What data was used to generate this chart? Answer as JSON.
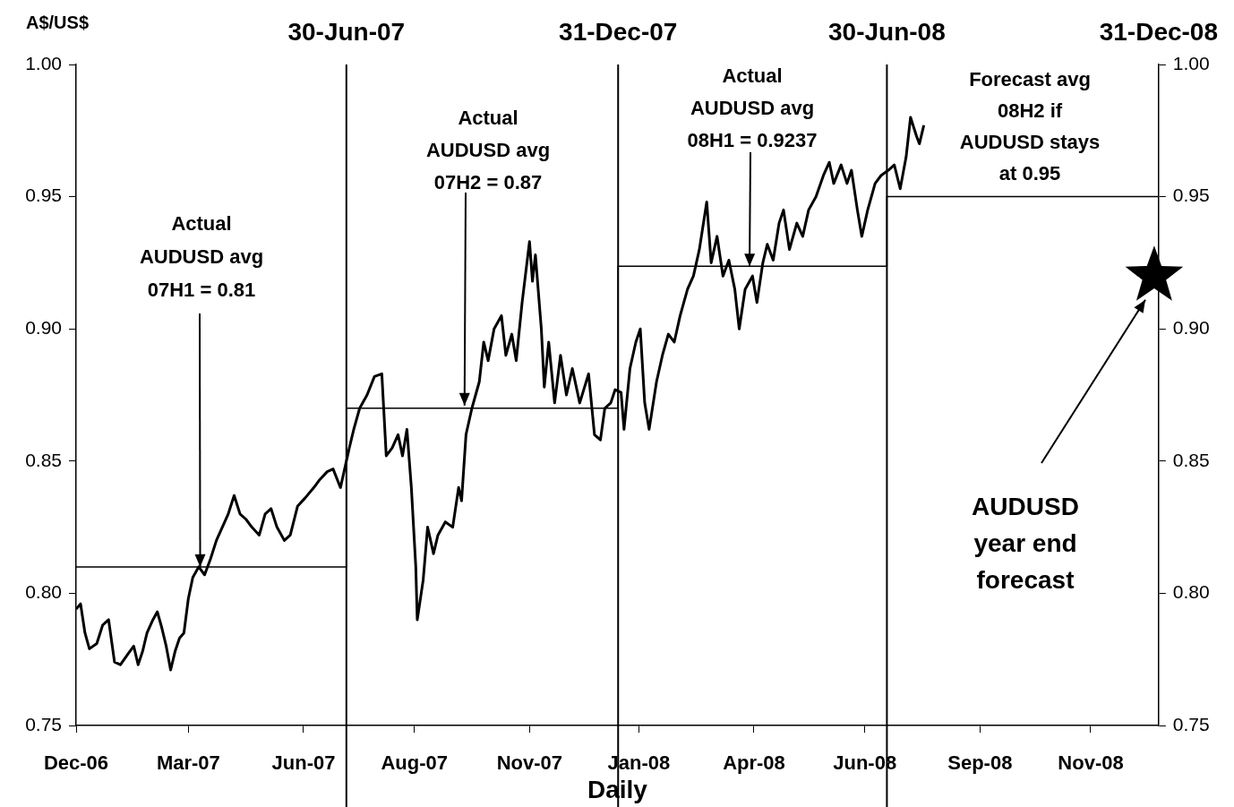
{
  "chart_data": {
    "type": "line",
    "ylabel": "A$/US$",
    "xlabel": "Daily",
    "xlim": [
      "2006-12-29",
      "2008-12-31"
    ],
    "xticks": [
      {
        "value": "2006-12-29",
        "label": "Dec-06"
      },
      {
        "value": "2007-03-15",
        "label": "Mar-07"
      },
      {
        "value": "2007-06-01",
        "label": "Jun-07"
      },
      {
        "value": "2007-08-15",
        "label": "Aug-07"
      },
      {
        "value": "2007-11-01",
        "label": "Nov-07"
      },
      {
        "value": "2008-01-14",
        "label": "Jan-08"
      },
      {
        "value": "2008-04-01",
        "label": "Apr-08"
      },
      {
        "value": "2008-06-15",
        "label": "Jun-08"
      },
      {
        "value": "2008-09-01",
        "label": "Sep-08"
      },
      {
        "value": "2008-11-15",
        "label": "Nov-08"
      }
    ],
    "x2lim": [
      "2006-12-29",
      "2008-12-31"
    ],
    "x2ticks": [
      {
        "value": "2007-06-30",
        "label": "30-Jun-07"
      },
      {
        "value": "2007-12-31",
        "label": "31-Dec-07"
      },
      {
        "value": "2008-06-30",
        "label": "30-Jun-08"
      },
      {
        "value": "2008-12-31",
        "label": "31-Dec-08"
      }
    ],
    "ylim": [
      0.75,
      1.0
    ],
    "yticks": [
      0.75,
      {
        "value": 0.8,
        "label": "0.80"
      },
      0.85,
      {
        "value": 0.9,
        "label": "0.90"
      },
      0.95,
      {
        "value": 1.0,
        "label": "1.00"
      }
    ],
    "y2lim": [
      0.75,
      1.0
    ],
    "y2ticks": [
      0.75,
      {
        "value": 0.8,
        "label": "0.80"
      },
      0.85,
      {
        "value": 0.9,
        "label": "0.90"
      },
      0.95,
      {
        "value": 1.0,
        "label": "1.00"
      }
    ],
    "grid": false,
    "legend": false,
    "marker": "none",
    "line_style": "solid",
    "ref_lines": [
      {
        "axis": "x",
        "value": "2007-06-30",
        "color": "#000000"
      },
      {
        "axis": "x",
        "value": "2007-12-31",
        "color": "#000000"
      },
      {
        "axis": "x",
        "value": "2008-06-30",
        "color": "#000000"
      }
    ],
    "series": [
      {
        "color": "#000000",
        "x": [
          "2006-12-29",
          "2007-01-01",
          "2007-01-04",
          "2007-01-07",
          "2007-01-12",
          "2007-01-16",
          "2007-01-20",
          "2007-01-24",
          "2007-01-28",
          "2007-02-02",
          "2007-02-06",
          "2007-02-09",
          "2007-02-12",
          "2007-02-15",
          "2007-02-19",
          "2007-02-22",
          "2007-02-25",
          "2007-02-28",
          "2007-03-03",
          "2007-03-06",
          "2007-03-09",
          "2007-03-12",
          "2007-03-15",
          "2007-03-18",
          "2007-03-22",
          "2007-03-26",
          "2007-03-30",
          "2007-04-03",
          "2007-04-07",
          "2007-04-11",
          "2007-04-15",
          "2007-04-19",
          "2007-04-23",
          "2007-04-27",
          "2007-05-02",
          "2007-05-06",
          "2007-05-10",
          "2007-05-14",
          "2007-05-19",
          "2007-05-23",
          "2007-05-28",
          "2007-06-02",
          "2007-06-08",
          "2007-06-12",
          "2007-06-17",
          "2007-06-21",
          "2007-06-26",
          "2007-07-02",
          "2007-07-05",
          "2007-07-09",
          "2007-07-14",
          "2007-07-19",
          "2007-07-24",
          "2007-07-27",
          "2007-07-31",
          "2007-08-04",
          "2007-08-07",
          "2007-08-10",
          "2007-08-13",
          "2007-08-16",
          "2007-08-17",
          "2007-08-21",
          "2007-08-24",
          "2007-08-28",
          "2007-08-31",
          "2007-09-05",
          "2007-09-10",
          "2007-09-14",
          "2007-09-16",
          "2007-09-19",
          "2007-09-23",
          "2007-09-28",
          "2007-10-01",
          "2007-10-04",
          "2007-10-08",
          "2007-10-13",
          "2007-10-16",
          "2007-10-20",
          "2007-10-23",
          "2007-10-27",
          "2007-11-01",
          "2007-11-03",
          "2007-11-05",
          "2007-11-09",
          "2007-11-11",
          "2007-11-14",
          "2007-11-18",
          "2007-11-22",
          "2007-11-26",
          "2007-11-30",
          "2007-12-05",
          "2007-12-11",
          "2007-12-15",
          "2007-12-19",
          "2007-12-22",
          "2007-12-26",
          "2007-12-29",
          "2008-01-02",
          "2008-01-04",
          "2008-01-08",
          "2008-01-12",
          "2008-01-15",
          "2008-01-18",
          "2008-01-21",
          "2008-01-26",
          "2008-01-30",
          "2008-02-03",
          "2008-02-07",
          "2008-02-11",
          "2008-02-16",
          "2008-02-20",
          "2008-02-24",
          "2008-02-29",
          "2008-03-03",
          "2008-03-07",
          "2008-03-11",
          "2008-03-15",
          "2008-03-19",
          "2008-03-22",
          "2008-03-26",
          "2008-03-31",
          "2008-04-03",
          "2008-04-07",
          "2008-04-10",
          "2008-04-14",
          "2008-04-18",
          "2008-04-21",
          "2008-04-25",
          "2008-04-30",
          "2008-05-04",
          "2008-05-08",
          "2008-05-13",
          "2008-05-18",
          "2008-05-22",
          "2008-05-25",
          "2008-05-30",
          "2008-06-03",
          "2008-06-06",
          "2008-06-10",
          "2008-06-13",
          "2008-06-17",
          "2008-06-22",
          "2008-06-26",
          "2008-07-01",
          "2008-07-05",
          "2008-07-09",
          "2008-07-13",
          "2008-07-16",
          "2008-07-20",
          "2008-07-22",
          "2008-07-25"
        ],
        "values": [
          0.794,
          0.796,
          0.785,
          0.779,
          0.781,
          0.788,
          0.79,
          0.774,
          0.773,
          0.777,
          0.78,
          0.773,
          0.778,
          0.785,
          0.79,
          0.793,
          0.787,
          0.78,
          0.771,
          0.778,
          0.783,
          0.785,
          0.798,
          0.806,
          0.81,
          0.807,
          0.813,
          0.82,
          0.825,
          0.83,
          0.837,
          0.83,
          0.828,
          0.825,
          0.822,
          0.83,
          0.832,
          0.825,
          0.82,
          0.822,
          0.833,
          0.836,
          0.84,
          0.843,
          0.846,
          0.847,
          0.84,
          0.855,
          0.862,
          0.87,
          0.875,
          0.882,
          0.883,
          0.852,
          0.855,
          0.86,
          0.852,
          0.862,
          0.84,
          0.81,
          0.79,
          0.805,
          0.825,
          0.815,
          0.822,
          0.827,
          0.825,
          0.84,
          0.835,
          0.86,
          0.87,
          0.88,
          0.895,
          0.888,
          0.9,
          0.905,
          0.89,
          0.898,
          0.888,
          0.91,
          0.933,
          0.918,
          0.928,
          0.9,
          0.878,
          0.895,
          0.872,
          0.89,
          0.875,
          0.885,
          0.872,
          0.883,
          0.86,
          0.858,
          0.87,
          0.872,
          0.877,
          0.876,
          0.862,
          0.885,
          0.895,
          0.9,
          0.872,
          0.862,
          0.88,
          0.89,
          0.898,
          0.895,
          0.905,
          0.915,
          0.92,
          0.93,
          0.948,
          0.925,
          0.935,
          0.92,
          0.926,
          0.915,
          0.9,
          0.915,
          0.92,
          0.91,
          0.925,
          0.932,
          0.926,
          0.94,
          0.945,
          0.93,
          0.94,
          0.935,
          0.945,
          0.95,
          0.958,
          0.963,
          0.955,
          0.962,
          0.955,
          0.96,
          0.945,
          0.935,
          0.945,
          0.955,
          0.958,
          0.96,
          0.962,
          0.953,
          0.965,
          0.98,
          0.973,
          0.97,
          0.977
        ]
      },
      {
        "type": "step",
        "color": "#000000",
        "x": [
          "2006-12-29",
          "2007-06-30",
          "2007-12-31",
          "2008-06-30",
          "2008-12-31"
        ],
        "values": [
          0.81,
          0.87,
          0.9237,
          0.95,
          0.95
        ]
      },
      {
        "type": "scatter",
        "color": "#000000",
        "marker": "star",
        "x": [
          "2008-12-28"
        ],
        "values": [
          0.92
        ]
      }
    ],
    "annotations": [
      {
        "text": "Actual AUDUSD avg 07H1 = 0.81",
        "x": "2007-03-23",
        "y": 0.81
      },
      {
        "text": "Actual AUDUSD avg 07H2 = 0.87",
        "x": "2007-09-18",
        "y": 0.871
      },
      {
        "text": "Actual AUDUSD avg 08H1 = 0.9237",
        "x": "2008-03-29",
        "y": 0.9237
      },
      "Forecast avg 08H2 if AUDUSD stays at 0.95",
      {
        "text": "AUDUSD year end forecast",
        "x": "2008-12-22",
        "y": 0.911
      }
    ]
  }
}
